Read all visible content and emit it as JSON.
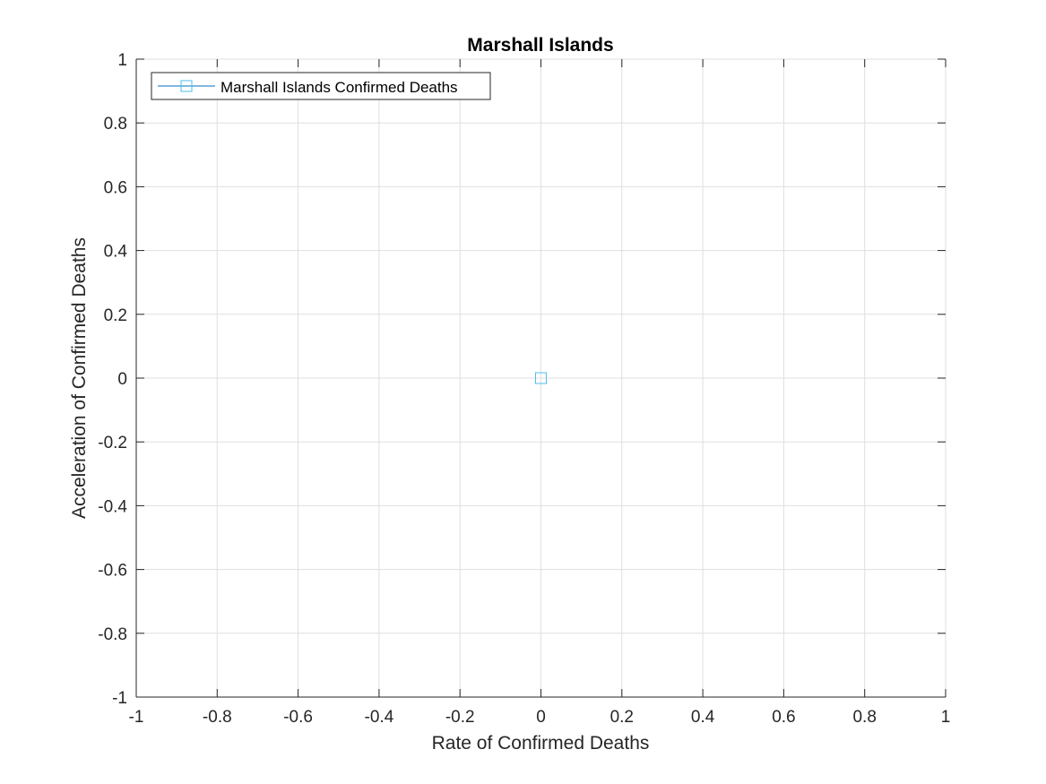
{
  "chart_data": {
    "type": "scatter",
    "title": "Marshall Islands",
    "xlabel": "Rate of Confirmed Deaths",
    "ylabel": "Acceleration of Confirmed Deaths",
    "xlim": [
      -1,
      1
    ],
    "ylim": [
      -1,
      1
    ],
    "xticks": [
      -1,
      -0.8,
      -0.6,
      -0.4,
      -0.2,
      0,
      0.2,
      0.4,
      0.6,
      0.8,
      1
    ],
    "yticks": [
      -1,
      -0.8,
      -0.6,
      -0.4,
      -0.2,
      0,
      0.2,
      0.4,
      0.6,
      0.8,
      1
    ],
    "xtick_labels": [
      "-1",
      "-0.8",
      "-0.6",
      "-0.4",
      "-0.2",
      "0",
      "0.2",
      "0.4",
      "0.6",
      "0.8",
      "1"
    ],
    "ytick_labels": [
      "-1",
      "-0.8",
      "-0.6",
      "-0.4",
      "-0.2",
      "0",
      "0.2",
      "0.4",
      "0.6",
      "0.8",
      "1"
    ],
    "grid": true,
    "legend_position": "top-left",
    "series": [
      {
        "name": "Marshall Islands Confirmed Deaths",
        "marker": "square",
        "color": "#4DBEEE",
        "line_color": "#0072BD",
        "x": [
          0
        ],
        "y": [
          0
        ]
      }
    ]
  }
}
